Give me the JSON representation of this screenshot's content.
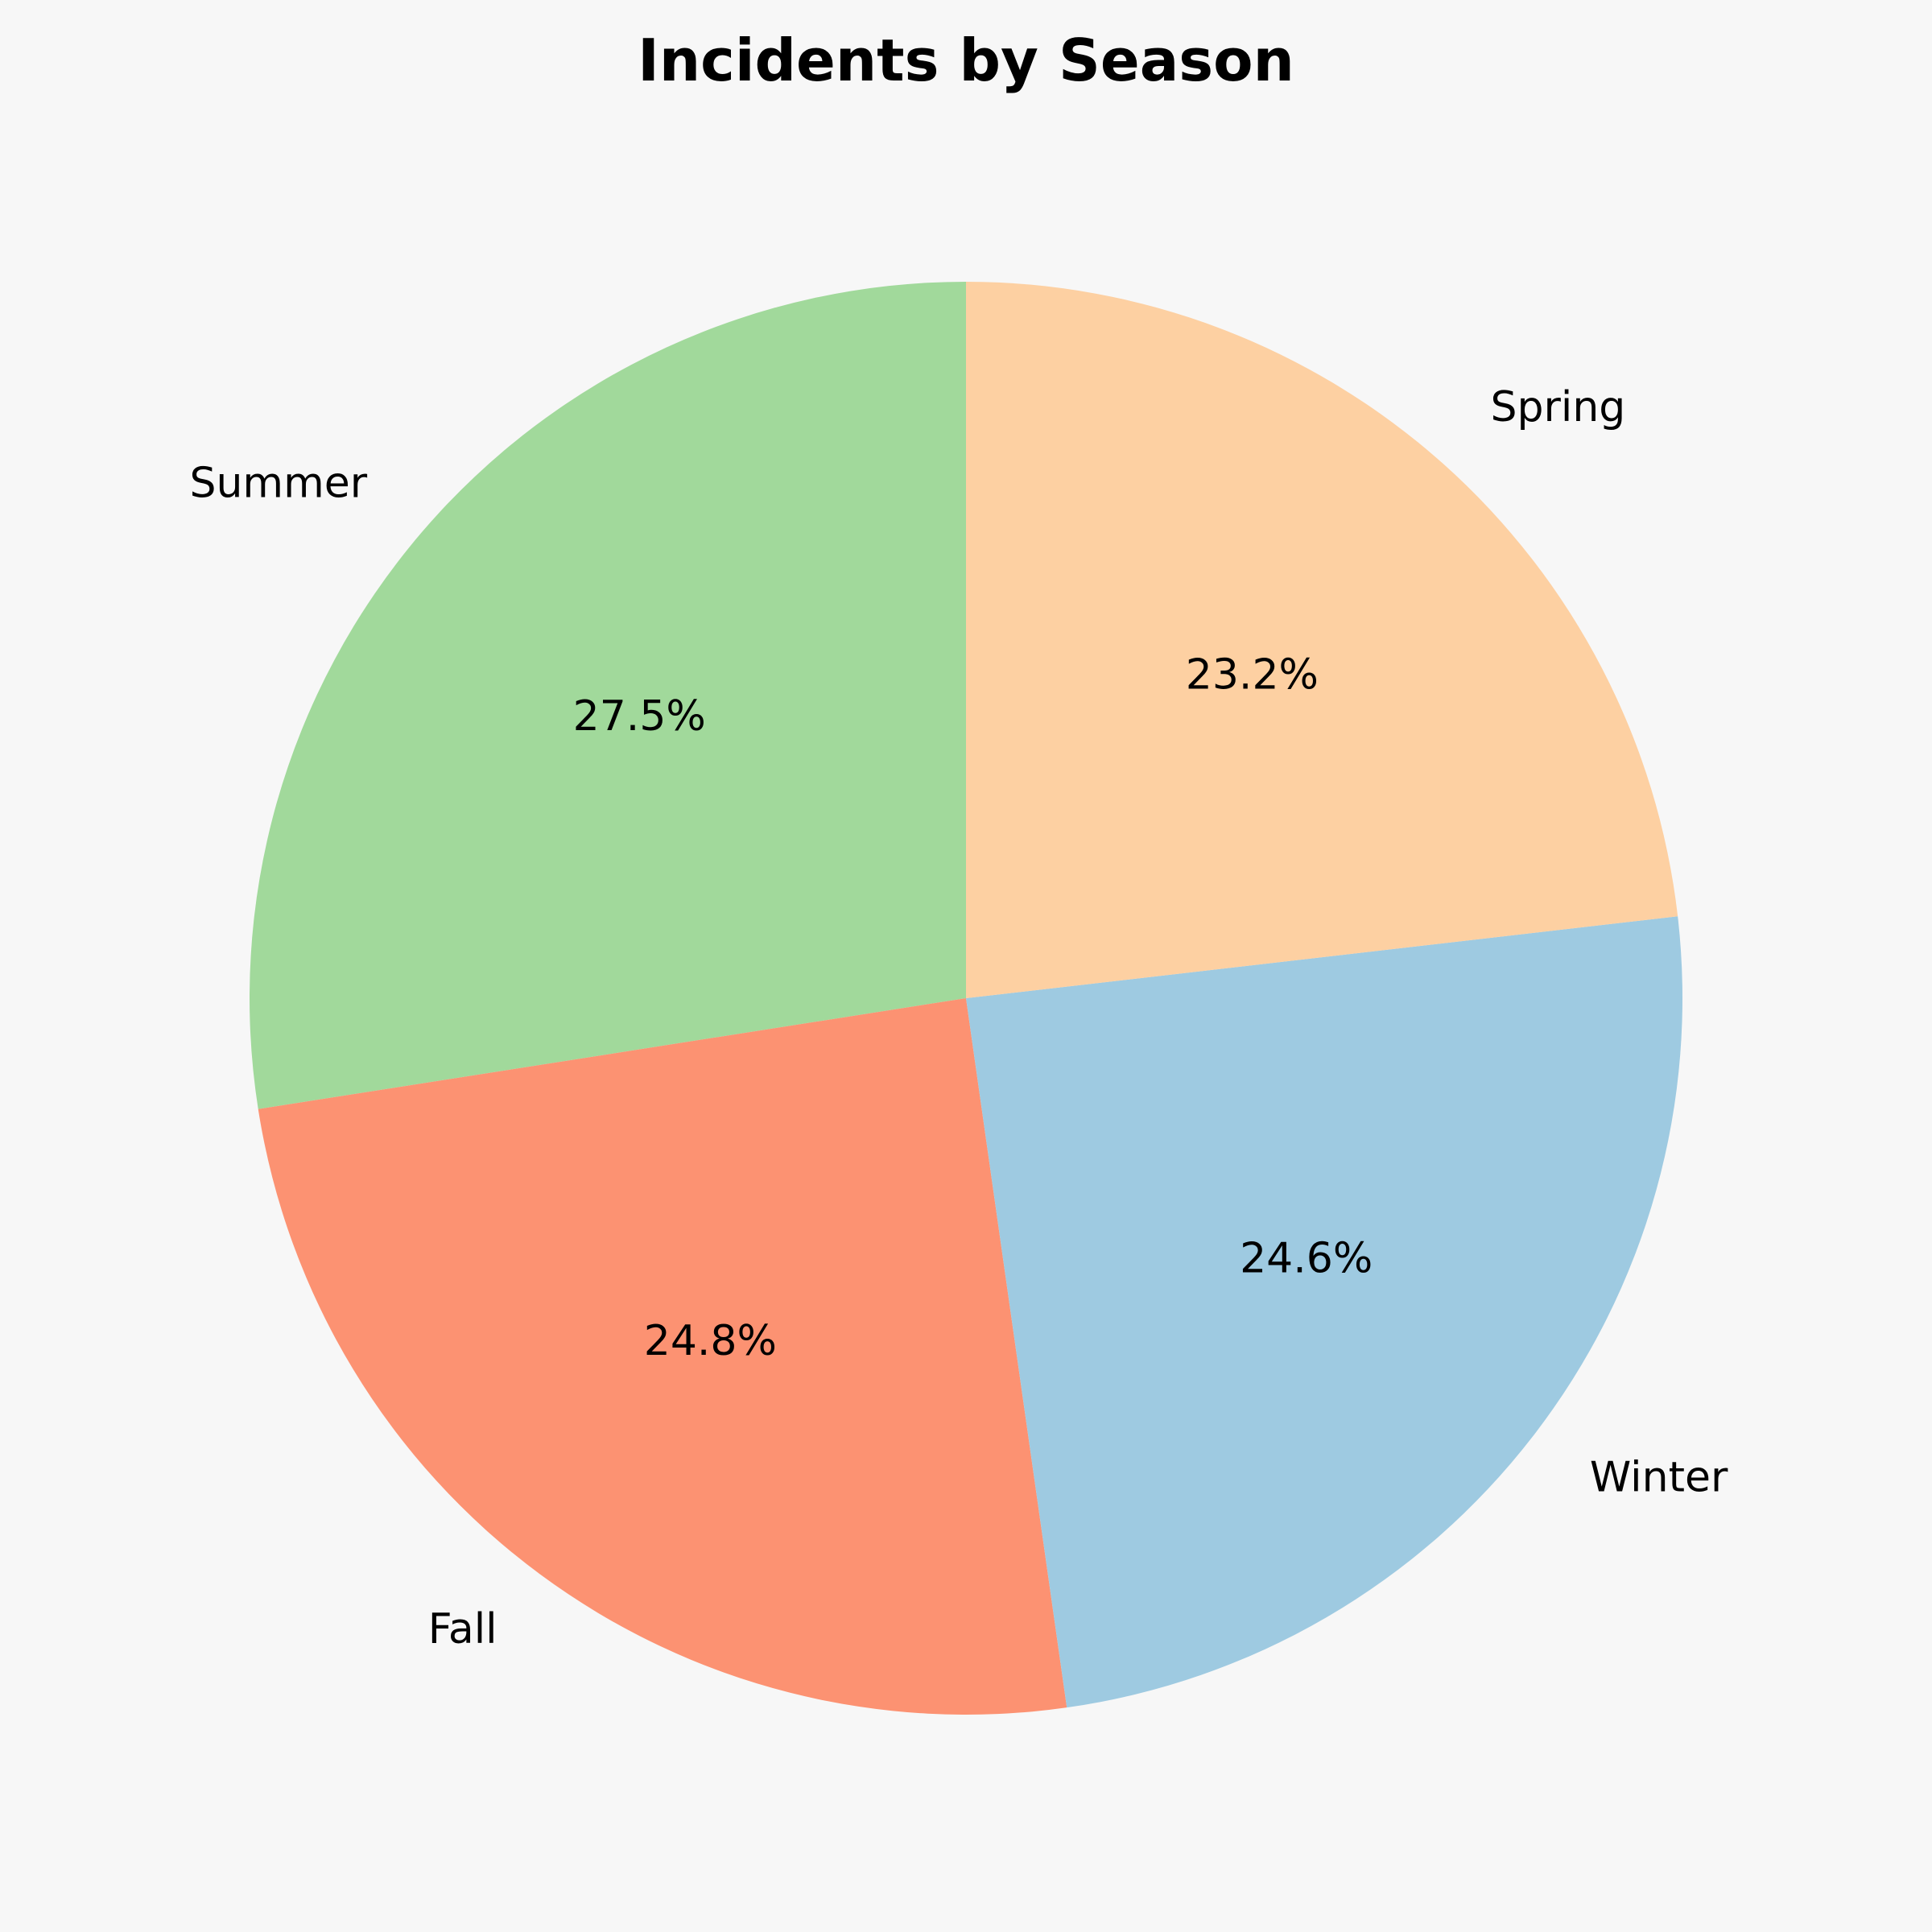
{
  "chart_data": {
    "type": "pie",
    "title": "Incidents by Season",
    "start_angle_deg": 90,
    "direction": "counterclockwise",
    "slices": [
      {
        "label": "Summer",
        "value": 27.5,
        "pct_label": "27.5%",
        "color": "#a1d99b"
      },
      {
        "label": "Fall",
        "value": 24.8,
        "pct_label": "24.8%",
        "color": "#fc9272"
      },
      {
        "label": "Winter",
        "value": 24.6,
        "pct_label": "24.6%",
        "color": "#9ecae1"
      },
      {
        "label": "Spring",
        "value": 23.2,
        "pct_label": "23.2%",
        "color": "#fdd0a2"
      }
    ],
    "background": "#f7f7f7"
  }
}
